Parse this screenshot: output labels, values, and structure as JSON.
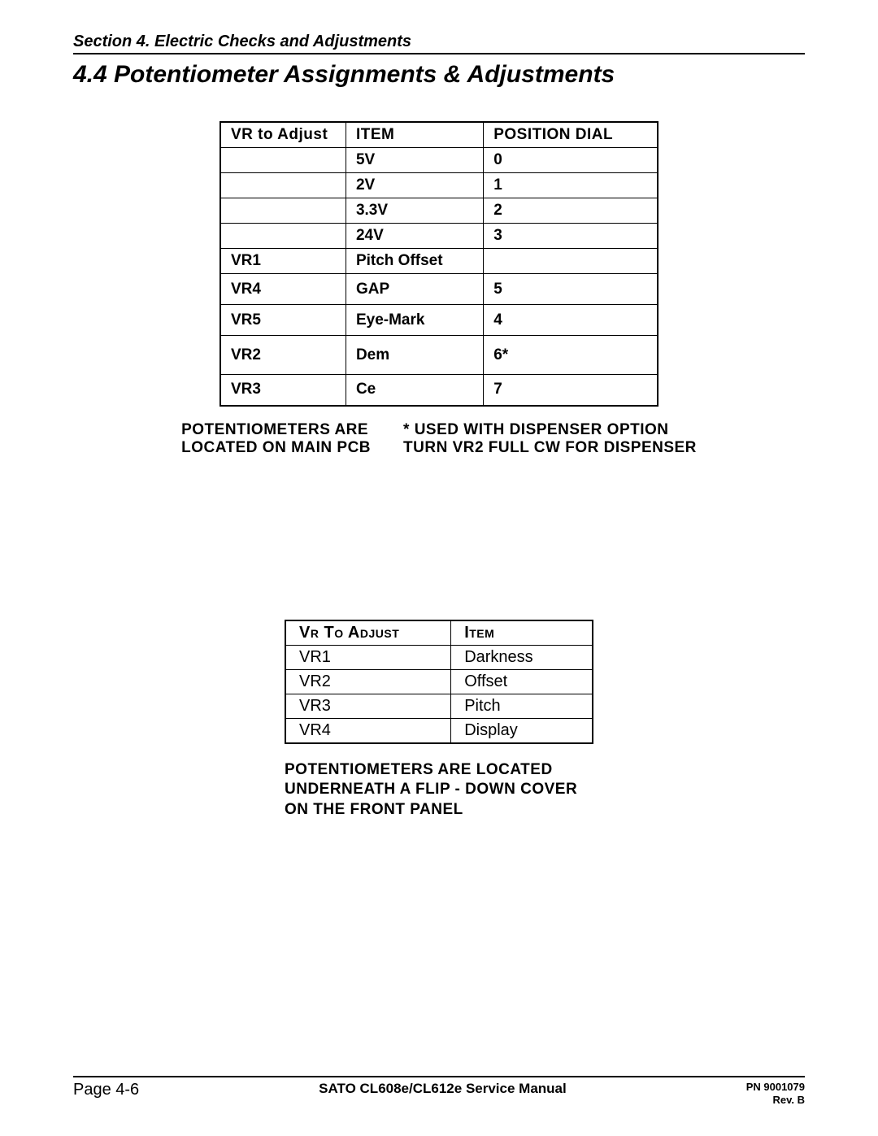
{
  "header": {
    "section_label": "Section 4.  Electric Checks and Adjustments",
    "title": "4.4  Potentiometer Assignments & Adjustments"
  },
  "table1": {
    "headers": {
      "col_a": "VR to Adjust",
      "col_b": "ITEM",
      "col_c": "POSITION DIAL"
    },
    "rows": [
      {
        "a": "",
        "b": "5V",
        "c": "0",
        "h": "h28"
      },
      {
        "a": "",
        "b": "2V",
        "c": "1",
        "h": "h28"
      },
      {
        "a": "",
        "b": "3.3V",
        "c": "2",
        "h": "h28"
      },
      {
        "a": "",
        "b": "24V",
        "c": "3",
        "h": "h28"
      },
      {
        "a": "VR1",
        "b": "Pitch Offset",
        "c": "",
        "h": "h28"
      },
      {
        "a": "VR4",
        "b": "GAP",
        "c": "5",
        "h": "h38"
      },
      {
        "a": "VR5",
        "b": "Eye-Mark",
        "c": "4",
        "h": "h38"
      },
      {
        "a": "VR2",
        "b": "Dem",
        "c": "6*",
        "h": "h48"
      },
      {
        "a": "VR3",
        "b": "Ce",
        "c": "7",
        "h": "h38"
      }
    ]
  },
  "notes1": {
    "left_line1": "POTENTIOMETERS ARE",
    "left_line2": "LOCATED ON MAIN PCB",
    "right_line1": "* USED WITH DISPENSER OPTION",
    "right_line2": "TURN VR2 FULL CW FOR DISPENSER"
  },
  "table2": {
    "headers": {
      "col_a": "Vr To Adjust",
      "col_b": "Item"
    },
    "rows": [
      {
        "a": "VR1",
        "b": "Darkness"
      },
      {
        "a": "VR2",
        "b": "Offset"
      },
      {
        "a": "VR3",
        "b": "Pitch"
      },
      {
        "a": "VR4",
        "b": "Display"
      }
    ]
  },
  "notes2": {
    "line1": "POTENTIOMETERS ARE LOCATED",
    "line2": "UNDERNEATH A FLIP - DOWN COVER",
    "line3": "ON THE FRONT PANEL"
  },
  "footer": {
    "page": "Page 4-6",
    "manual": "SATO CL608e/CL612e Service Manual",
    "pn": "PN 9001079",
    "rev": "Rev. B"
  },
  "style": {
    "colors": {
      "text": "#000000",
      "bg": "#ffffff",
      "rule": "#000000"
    },
    "fonts": {
      "body": "Arial, Helvetica, sans-serif"
    }
  }
}
